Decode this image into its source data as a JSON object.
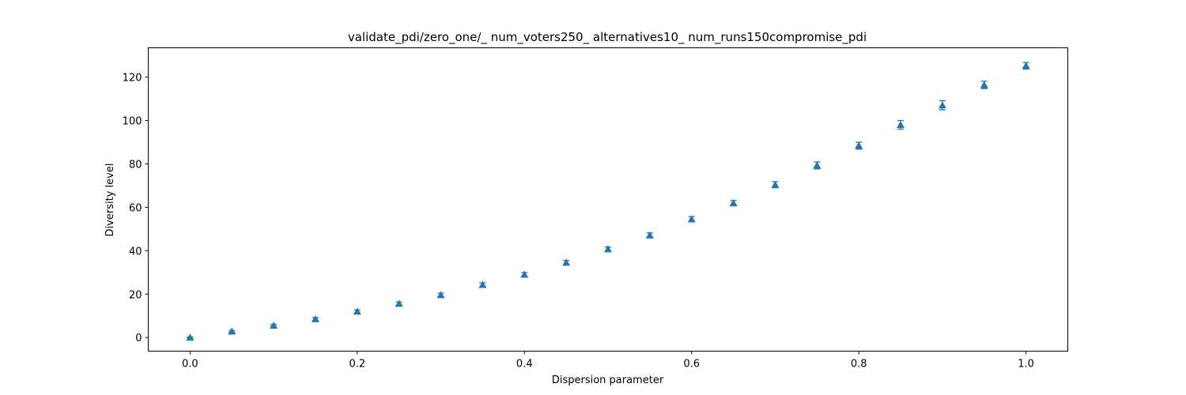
{
  "chart_data": {
    "type": "scatter",
    "title": "validate_pdi/zero_one/_ num_voters250_ alternatives10_ num_runs150compromise_pdi",
    "xlabel": "Dispersion parameter",
    "ylabel": "Diversity level",
    "xlim": [
      -0.05,
      1.05
    ],
    "ylim": [
      -6.3,
      133.5
    ],
    "xticks": [
      0.0,
      0.2,
      0.4,
      0.6,
      0.8,
      1.0
    ],
    "xtick_labels": [
      "0.0",
      "0.2",
      "0.4",
      "0.6",
      "0.8",
      "1.0"
    ],
    "yticks": [
      0,
      20,
      40,
      60,
      80,
      100,
      120
    ],
    "ytick_labels": [
      "0",
      "20",
      "40",
      "60",
      "80",
      "100",
      "120"
    ],
    "grid": false,
    "marker": "triangle-up",
    "series": [
      {
        "color": "#1f77b4",
        "x": [
          0.0,
          0.05,
          0.1,
          0.15,
          0.2,
          0.25,
          0.3,
          0.35,
          0.4,
          0.45,
          0.5,
          0.55,
          0.6,
          0.65,
          0.7,
          0.75,
          0.8,
          0.85,
          0.9,
          0.95,
          1.0
        ],
        "y": [
          0.0,
          2.8,
          5.5,
          8.5,
          12.0,
          15.6,
          19.6,
          24.3,
          29.0,
          34.5,
          40.7,
          47.1,
          54.5,
          61.9,
          70.4,
          79.3,
          88.4,
          98.0,
          107.0,
          116.4,
          125.2
        ],
        "err": [
          0.2,
          0.4,
          0.5,
          0.6,
          0.7,
          0.8,
          0.8,
          0.9,
          0.9,
          1.0,
          1.0,
          1.1,
          1.2,
          1.2,
          1.4,
          1.6,
          1.6,
          2.0,
          2.1,
          1.7,
          1.5
        ]
      }
    ]
  }
}
